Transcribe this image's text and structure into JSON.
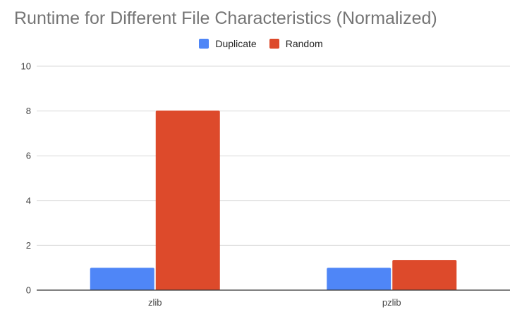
{
  "chart_data": {
    "type": "bar",
    "title": "Runtime for Different File Characteristics (Normalized)",
    "categories": [
      "zlib",
      "pzlib"
    ],
    "series": [
      {
        "name": "Duplicate",
        "color": "#4f86f7",
        "values": [
          1.0,
          1.0
        ]
      },
      {
        "name": "Random",
        "color": "#dd4a2b",
        "values": [
          8.02,
          1.35
        ]
      }
    ],
    "ylim": [
      0,
      10
    ],
    "yticks": [
      "0",
      "2",
      "4",
      "6",
      "8",
      "10"
    ],
    "grid": true,
    "legend_position": "top"
  }
}
